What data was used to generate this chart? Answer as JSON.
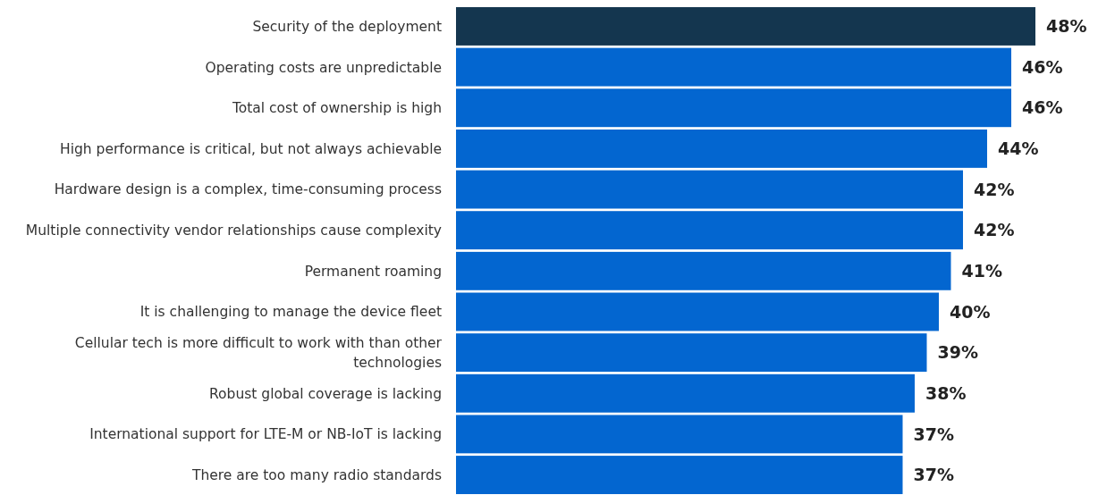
{
  "chart_data": {
    "type": "bar",
    "orientation": "horizontal",
    "categories": [
      "Security of the deployment",
      "Operating costs are unpredictable",
      "Total cost of ownership is high",
      "High performance is critical, but not always achievable",
      "Hardware design is a complex, time-consuming process",
      "Multiple connectivity vendor relationships cause complexity",
      "Permanent roaming",
      "It is challenging to manage the device fleet",
      "Cellular tech is more difficult to work with than other technologies",
      "Robust global coverage is lacking",
      "International support for LTE-M or NB-IoT is lacking",
      "There are too many radio standards"
    ],
    "values": [
      48,
      46,
      46,
      44,
      42,
      42,
      41,
      40,
      39,
      38,
      37,
      37
    ],
    "value_labels": [
      "48%",
      "46%",
      "46%",
      "44%",
      "42%",
      "42%",
      "41%",
      "40%",
      "39%",
      "38%",
      "37%",
      "37%"
    ],
    "colors": [
      "#14364f",
      "#0366d0",
      "#0366d0",
      "#0366d0",
      "#0366d0",
      "#0366d0",
      "#0366d0",
      "#0366d0",
      "#0366d0",
      "#0366d0",
      "#0366d0",
      "#0366d0"
    ]
  }
}
